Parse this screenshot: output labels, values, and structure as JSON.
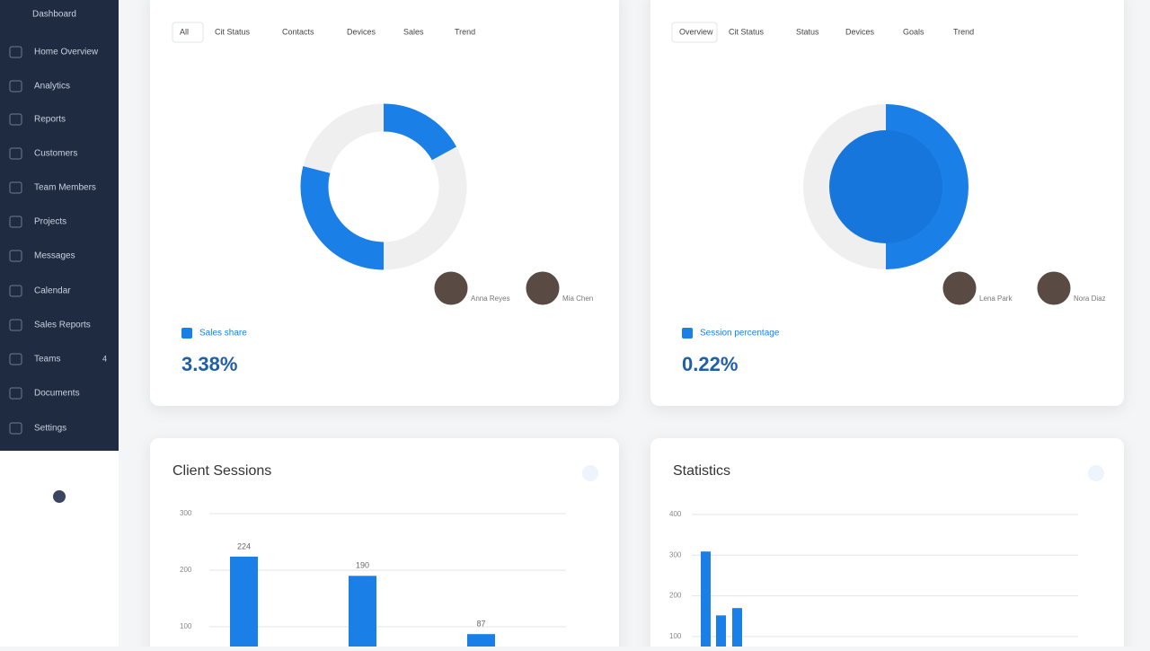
{
  "sidebar": {
    "brand": "Dashboard",
    "badge": "4",
    "items": [
      "Home Overview",
      "Analytics",
      "Reports",
      "Customers",
      "Team Members",
      "Projects",
      "Messages",
      "Calendar",
      "Sales Reports",
      "Teams",
      "Documents",
      "Settings"
    ]
  },
  "cards": [
    {
      "tabs": [
        "All",
        "Cit Status",
        "Contacts",
        "Devices",
        "Sales",
        "Trend"
      ],
      "legend": "Sales share",
      "stat": "3.38%",
      "people": [
        "Anna Reyes",
        "Mia Chen"
      ]
    },
    {
      "tabs": [
        "Overview",
        "Cit Status",
        "Status",
        "Devices",
        "Goals",
        "Trend"
      ],
      "legend": "Session percentage",
      "stat": "0.22%",
      "people": [
        "Lena Park",
        "Nora Diaz"
      ]
    }
  ],
  "chart_data": [
    {
      "type": "donut",
      "values": [
        17,
        33,
        29,
        21
      ],
      "colors": [
        "#1a7fe6",
        "#efefef",
        "#1a7fe6",
        "#efefef"
      ]
    },
    {
      "type": "donut",
      "values": [
        50,
        50
      ],
      "colors": [
        "#1a7fe6",
        "#efefef"
      ]
    },
    {
      "type": "bar",
      "title": "Client Sessions",
      "values": [
        224,
        190,
        87
      ],
      "color": "#1a7fe6",
      "ylim": [
        0,
        300
      ],
      "yticks": [
        100,
        200,
        300
      ],
      "grid": true
    },
    {
      "type": "bar",
      "title": "Statistics",
      "values": [
        309,
        152,
        170
      ],
      "color": "#1a7fe6",
      "ylim": [
        0,
        400
      ],
      "yticks": [
        100,
        200,
        300,
        400
      ],
      "grid": true
    }
  ]
}
